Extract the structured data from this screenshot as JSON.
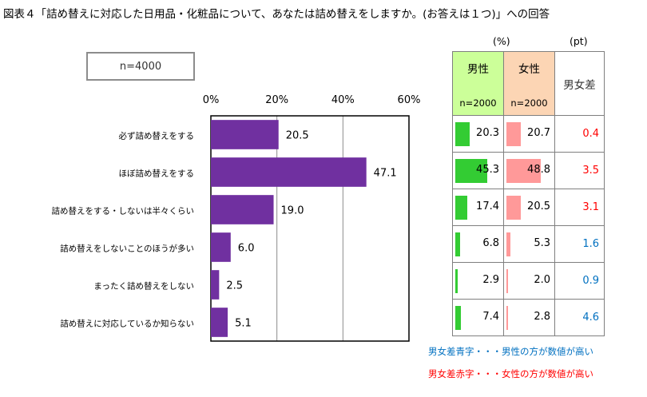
{
  "title": "図表４「詰め替えに対応した日用品・化粧品について、あなたは詰め替えをしますか。(お答えは１つ)」への回答",
  "sample_box": "n=4000",
  "units": {
    "percent": "(%)",
    "points": "(pt)"
  },
  "colors": {
    "main_bar": "#7030a0",
    "male": "#33cc33",
    "female": "#ff9999",
    "male_header": "#ccff99",
    "female_header": "#fcd5b4",
    "blue": "#0070c0",
    "red": "#ff0000"
  },
  "chart_data": {
    "type": "bar",
    "orientation": "horizontal",
    "title": "",
    "categories": [
      "必ず詰め替えをする",
      "ほぼ詰め替えをする",
      "詰め替えをする・しないは半々くらい",
      "詰め替えをしないことのほうが多い",
      "まったく詰め替えをしない",
      "詰め替えに対応しているか知らない"
    ],
    "values": [
      20.5,
      47.1,
      19.0,
      6.0,
      2.5,
      5.1
    ],
    "value_labels": [
      "20.5",
      "47.1",
      "19.0",
      "6.0",
      "2.5",
      "5.1"
    ],
    "xlim": [
      0,
      60
    ],
    "ticks": [
      0,
      20,
      40,
      60
    ],
    "tick_labels": [
      "0%",
      "20%",
      "40%",
      "60%"
    ],
    "grid": true,
    "table": {
      "headers": [
        {
          "title": "男性",
          "n": "n=2000"
        },
        {
          "title": "女性",
          "n": "n=2000"
        },
        {
          "title": "男女差",
          "n": ""
        }
      ],
      "male": [
        20.3,
        45.3,
        17.4,
        6.8,
        2.9,
        7.4
      ],
      "female": [
        20.7,
        48.8,
        20.5,
        5.3,
        2.0,
        2.8
      ],
      "male_labels": [
        "20.3",
        "45.3",
        "17.4",
        "6.8",
        "2.9",
        "7.4"
      ],
      "female_labels": [
        "20.7",
        "48.8",
        "20.5",
        "5.3",
        "2.0",
        "2.8"
      ],
      "diff": [
        "0.4",
        "3.5",
        "3.1",
        "1.6",
        "0.9",
        "4.6"
      ],
      "diff_colors": [
        "red",
        "red",
        "red",
        "blue",
        "blue",
        "blue"
      ]
    }
  },
  "legend": {
    "blue": "男女差青字・・・男性の方が数値が高い",
    "red": "男女差赤字・・・女性の方が数値が高い"
  }
}
